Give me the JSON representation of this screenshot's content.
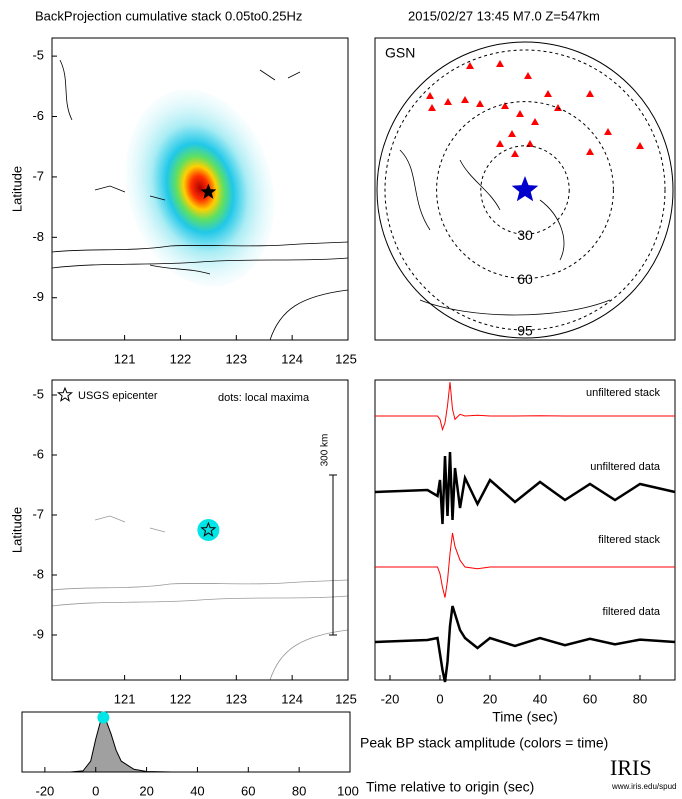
{
  "header": {
    "title": "BackProjection cumulative stack 0.05to0.25Hz",
    "event": "2015/02/27 13:45   M7.0  Z=547km"
  },
  "chart_data": [
    {
      "type": "map",
      "ylabel": "Latitude",
      "xlim": [
        119.7,
        125
      ],
      "ylim": [
        -9.7,
        -4.7
      ],
      "xticks": [
        121,
        122,
        123,
        124,
        125
      ],
      "yticks": [
        -5,
        -6,
        -7,
        -8,
        -9
      ],
      "epicenter": {
        "lon": 122.5,
        "lat": -7.25
      }
    },
    {
      "type": "polar",
      "title": "GSN",
      "rings": [
        30,
        60,
        95
      ],
      "marker_color": "#ff0000",
      "epicenter_color": "#0000cc"
    },
    {
      "type": "map",
      "ylabel": "Latitude",
      "xlim": [
        119.7,
        125
      ],
      "ylim": [
        -9.75,
        -4.75
      ],
      "xticks": [
        121,
        122,
        123,
        124,
        125
      ],
      "yticks": [
        -5,
        -6,
        -7,
        -8,
        -9
      ],
      "epicenter": {
        "lon": 122.5,
        "lat": -7.25
      },
      "legend": [
        "USGS epicenter",
        "dots: local maxima"
      ],
      "scale_label": "300 km",
      "dot_color": "#00e5e5"
    },
    {
      "type": "line",
      "xlabel": "Time (sec)",
      "xlim": [
        -26,
        94
      ],
      "xticks": [
        -20,
        0,
        20,
        40,
        60,
        80
      ],
      "x": [
        -26,
        -5,
        -1,
        0,
        1,
        2,
        3,
        4,
        5,
        6,
        8,
        10,
        15,
        20,
        30,
        40,
        50,
        60,
        70,
        80,
        94
      ],
      "series": [
        {
          "name": "unfiltered stack",
          "color": "#ff0000",
          "values": [
            0,
            0,
            0,
            -0.1,
            -0.4,
            -0.2,
            0.3,
            1,
            0.2,
            -0.1,
            0.05,
            0,
            0.02,
            0,
            0,
            0.01,
            0,
            0,
            0,
            0,
            0
          ]
        },
        {
          "name": "unfiltered data",
          "color": "#000000",
          "values": [
            0,
            0.05,
            -0.1,
            0.3,
            -0.8,
            0.9,
            -0.6,
            1,
            -0.7,
            0.6,
            -0.4,
            0.35,
            -0.3,
            0.3,
            -0.25,
            0.25,
            -0.2,
            0.2,
            -0.2,
            0.2,
            0
          ]
        },
        {
          "name": "filtered stack",
          "color": "#ff0000",
          "values": [
            0,
            0,
            0,
            -0.2,
            -0.6,
            -0.9,
            -0.4,
            0.4,
            1,
            0.6,
            0.2,
            0,
            -0.05,
            0,
            0,
            0,
            0,
            0,
            0,
            0,
            0
          ]
        },
        {
          "name": "filtered data",
          "color": "#000000",
          "values": [
            0,
            0.05,
            0.1,
            -0.3,
            -0.7,
            -1,
            -0.5,
            0.4,
            0.9,
            0.7,
            0.3,
            0.1,
            -0.15,
            0.1,
            -0.1,
            0.1,
            -0.08,
            0.08,
            -0.06,
            0.06,
            0
          ]
        }
      ]
    },
    {
      "type": "area",
      "title": "Peak BP stack amplitude (colors = time)",
      "xlabel": "Time relative to origin (sec)",
      "xlim": [
        -29,
        100
      ],
      "ylim": [
        0,
        1.1
      ],
      "xticks": [
        -20,
        0,
        20,
        40,
        60,
        80,
        100
      ],
      "x": [
        -29,
        -10,
        -5,
        -2,
        0,
        2,
        3,
        4,
        6,
        8,
        10,
        15,
        20,
        30,
        100
      ],
      "values": [
        0,
        0,
        0.02,
        0.2,
        0.6,
        0.95,
        1,
        0.95,
        0.7,
        0.4,
        0.2,
        0.05,
        0.01,
        0,
        0
      ],
      "color": "#a0a0a0",
      "peak_color": "#00e5e5",
      "peak_index": 6
    }
  ],
  "logo": {
    "name": "IRIS",
    "url": "www.iris.edu/spud"
  }
}
